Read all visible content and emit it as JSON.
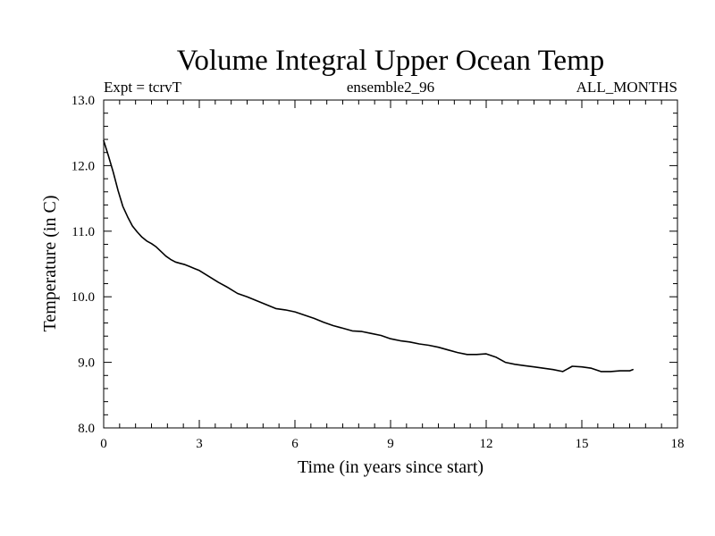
{
  "chart_data": {
    "type": "line",
    "title": "Volume Integral Upper Ocean Temp",
    "subtitle_left": "Expt = tcrvT",
    "subtitle_center": "ensemble2_96",
    "subtitle_right": "ALL_MONTHS",
    "xlabel": "Time (in years since start)",
    "ylabel": "Temperature (in C)",
    "xlim": [
      0,
      18
    ],
    "ylim": [
      8.0,
      13.0
    ],
    "x_ticks": [
      0,
      3,
      6,
      9,
      12,
      15,
      18
    ],
    "x_tick_labels": [
      "0",
      "3",
      "6",
      "9",
      "12",
      "15",
      "18"
    ],
    "y_ticks": [
      8.0,
      9.0,
      10.0,
      11.0,
      12.0,
      13.0
    ],
    "y_tick_labels": [
      "8.0",
      "9.0",
      "10.0",
      "11.0",
      "12.0",
      "13.0"
    ],
    "grid": false,
    "line_color": "#000000",
    "series": [
      {
        "x": [
          0.0,
          0.15,
          0.3,
          0.45,
          0.6,
          0.75,
          0.9,
          1.05,
          1.2,
          1.35,
          1.5,
          1.65,
          1.8,
          1.95,
          2.1,
          2.25,
          2.4,
          2.55,
          2.7,
          2.85,
          3.0,
          3.3,
          3.6,
          3.9,
          4.2,
          4.5,
          4.8,
          5.1,
          5.4,
          5.7,
          6.0,
          6.3,
          6.6,
          6.9,
          7.2,
          7.5,
          7.8,
          8.1,
          8.4,
          8.7,
          9.0,
          9.3,
          9.6,
          9.9,
          10.2,
          10.5,
          10.8,
          11.1,
          11.4,
          11.7,
          12.0,
          12.3,
          12.6,
          12.9,
          13.2,
          13.5,
          13.8,
          14.1,
          14.4,
          14.7,
          15.0,
          15.3,
          15.6,
          15.9,
          16.2,
          16.5,
          16.6
        ],
        "y": [
          12.38,
          12.15,
          11.9,
          11.62,
          11.38,
          11.22,
          11.08,
          10.99,
          10.91,
          10.85,
          10.81,
          10.76,
          10.69,
          10.62,
          10.57,
          10.53,
          10.51,
          10.49,
          10.46,
          10.43,
          10.4,
          10.31,
          10.22,
          10.14,
          10.05,
          10.0,
          9.94,
          9.88,
          9.82,
          9.8,
          9.77,
          9.72,
          9.67,
          9.61,
          9.56,
          9.52,
          9.48,
          9.47,
          9.44,
          9.41,
          9.36,
          9.33,
          9.31,
          9.28,
          9.26,
          9.23,
          9.19,
          9.15,
          9.12,
          9.12,
          9.13,
          9.08,
          9.0,
          8.97,
          8.95,
          8.93,
          8.91,
          8.89,
          8.86,
          8.94,
          8.93,
          8.91,
          8.86,
          8.86,
          8.87,
          8.87,
          8.89
        ]
      }
    ]
  }
}
